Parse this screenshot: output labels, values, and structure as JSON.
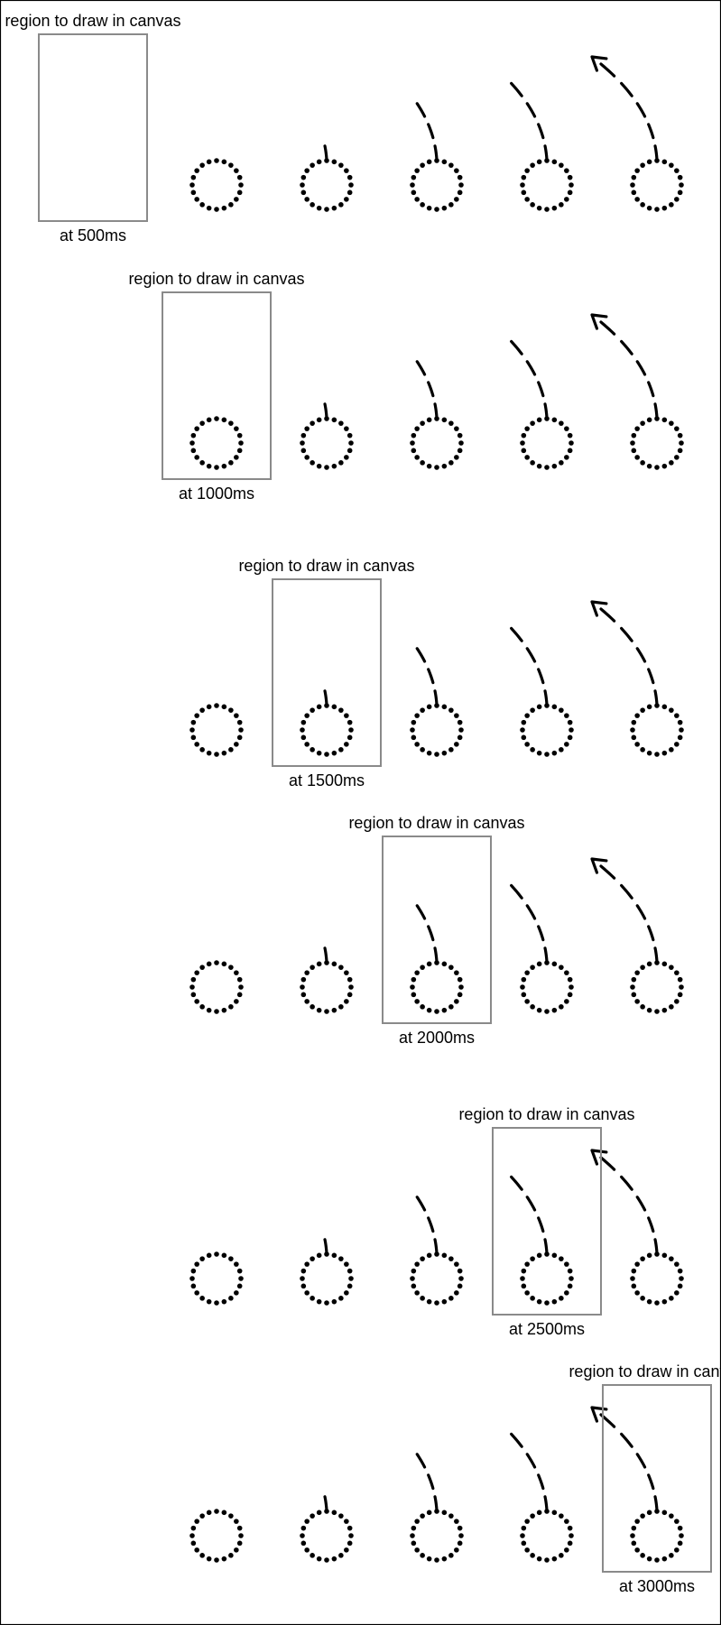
{
  "diagram": {
    "region_label": "region to draw in canvas",
    "icon_names": [
      "dotted-circle",
      "dashed-arrow-path",
      "arrowhead"
    ],
    "colors": {
      "frame": "#000000",
      "region_box": "#8a8a8a",
      "marks": "#000000"
    },
    "rows": [
      {
        "time_label": "at 500ms",
        "region_index": 0
      },
      {
        "time_label": "at 1000ms",
        "region_index": 1
      },
      {
        "time_label": "at 1500ms",
        "region_index": 2
      },
      {
        "time_label": "at 2000ms",
        "region_index": 3
      },
      {
        "time_label": "at 2500ms",
        "region_index": 4
      },
      {
        "time_label": "at 3000ms",
        "region_index": 5
      }
    ],
    "frames": [
      {
        "index": 0,
        "trail_segments": 0,
        "arrowhead": false
      },
      {
        "index": 1,
        "trail_segments": 1,
        "arrowhead": false
      },
      {
        "index": 2,
        "trail_segments": 3,
        "arrowhead": false
      },
      {
        "index": 3,
        "trail_segments": 4,
        "arrowhead": false
      },
      {
        "index": 4,
        "trail_segments": 5,
        "arrowhead": true
      }
    ]
  }
}
